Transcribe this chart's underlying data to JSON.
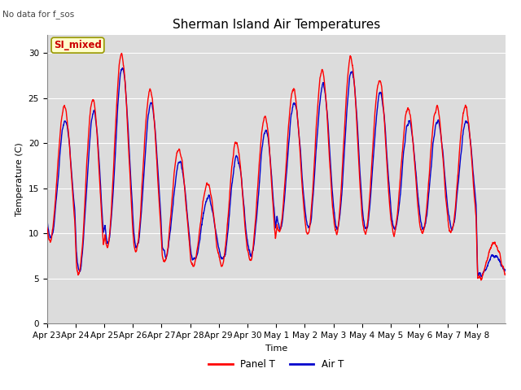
{
  "title": "Sherman Island Air Temperatures",
  "subtitle": "No data for f_sos",
  "xlabel": "Time",
  "ylabel": "Temperature (C)",
  "ylim": [
    0,
    32
  ],
  "yticks": [
    0,
    5,
    10,
    15,
    20,
    25,
    30
  ],
  "legend_label_red": "Panel T",
  "legend_label_blue": "Air T",
  "panel_color": "#ff0000",
  "air_color": "#0000cc",
  "panel_linewidth": 1.0,
  "air_linewidth": 1.0,
  "bg_color": "#dcdcdc",
  "annotation_text": "SI_mixed",
  "annotation_color": "#cc0000",
  "annotation_bg": "#ffffcc",
  "annotation_border": "#999900",
  "xtick_labels": [
    "Apr 23",
    "Apr 24",
    "Apr 25",
    "Apr 26",
    "Apr 27",
    "Apr 28",
    "Apr 29",
    "Apr 30",
    "May 1",
    "May 2",
    "May 3",
    "May 4",
    "May 5",
    "May 6",
    "May 7",
    "May 8"
  ],
  "title_fontsize": 11,
  "axis_fontsize": 8,
  "tick_fontsize": 7.5
}
